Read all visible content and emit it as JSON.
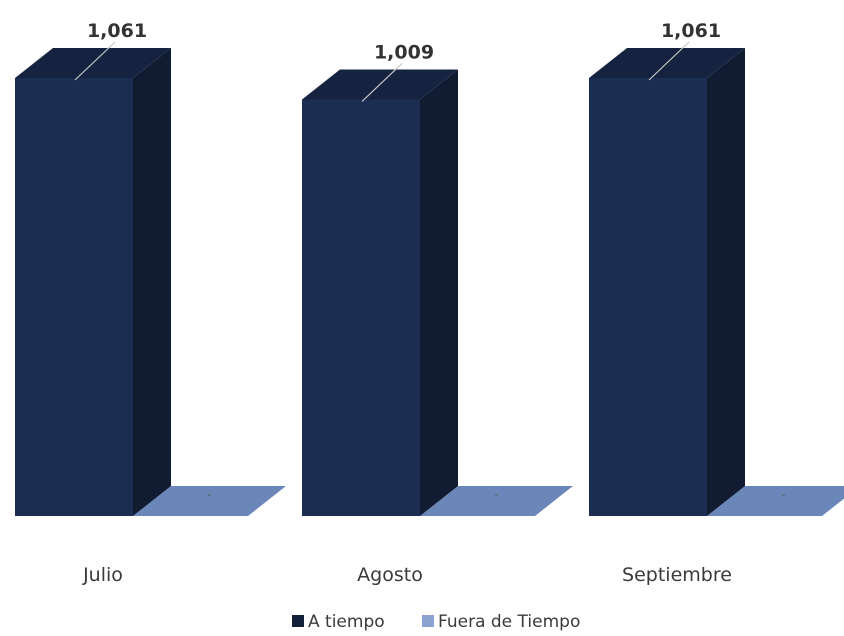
{
  "chart_data": {
    "type": "bar",
    "categories": [
      "Julio",
      "Agosto",
      "Septiembre"
    ],
    "series": [
      {
        "name": "A tiempo",
        "values": [
          1061,
          1009,
          1061
        ],
        "labels": [
          "1,061",
          "1,009",
          "1,061"
        ],
        "color": "#1c2d52"
      },
      {
        "name": "Fuera de Tiempo",
        "values": [
          0,
          0,
          0
        ],
        "labels": [
          "-",
          "-",
          "-"
        ],
        "color": "#6b86b8"
      }
    ],
    "ylim": [
      0,
      1061
    ],
    "grid": false,
    "legend": "bottom"
  }
}
